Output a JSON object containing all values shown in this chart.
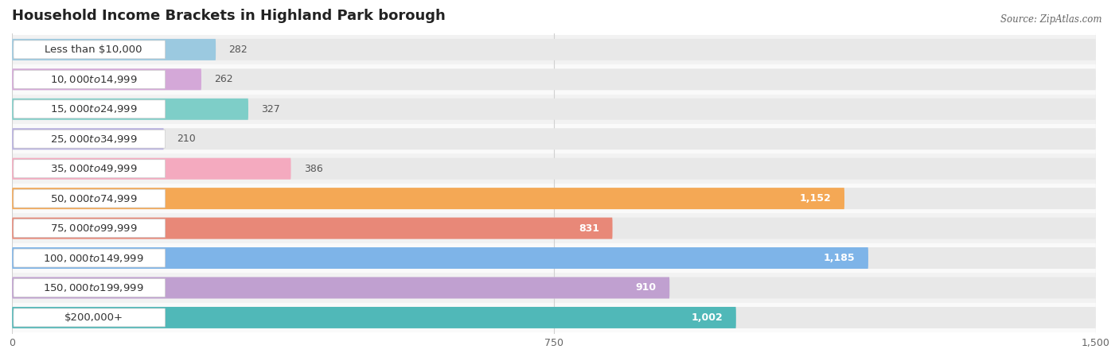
{
  "title": "Household Income Brackets in Highland Park borough",
  "source": "Source: ZipAtlas.com",
  "categories": [
    "Less than $10,000",
    "$10,000 to $14,999",
    "$15,000 to $24,999",
    "$25,000 to $34,999",
    "$35,000 to $49,999",
    "$50,000 to $74,999",
    "$75,000 to $99,999",
    "$100,000 to $149,999",
    "$150,000 to $199,999",
    "$200,000+"
  ],
  "values": [
    282,
    262,
    327,
    210,
    386,
    1152,
    831,
    1185,
    910,
    1002
  ],
  "bar_colors": [
    "#9BC9E0",
    "#D4A8D8",
    "#7ECEC8",
    "#B8B0E0",
    "#F4AABF",
    "#F4A855",
    "#E88878",
    "#7EB4E8",
    "#C0A0D0",
    "#50B8B8"
  ],
  "xlim": [
    0,
    1500
  ],
  "xticks": [
    0,
    750,
    1500
  ],
  "title_fontsize": 13,
  "label_fontsize": 9.5,
  "value_fontsize": 9
}
